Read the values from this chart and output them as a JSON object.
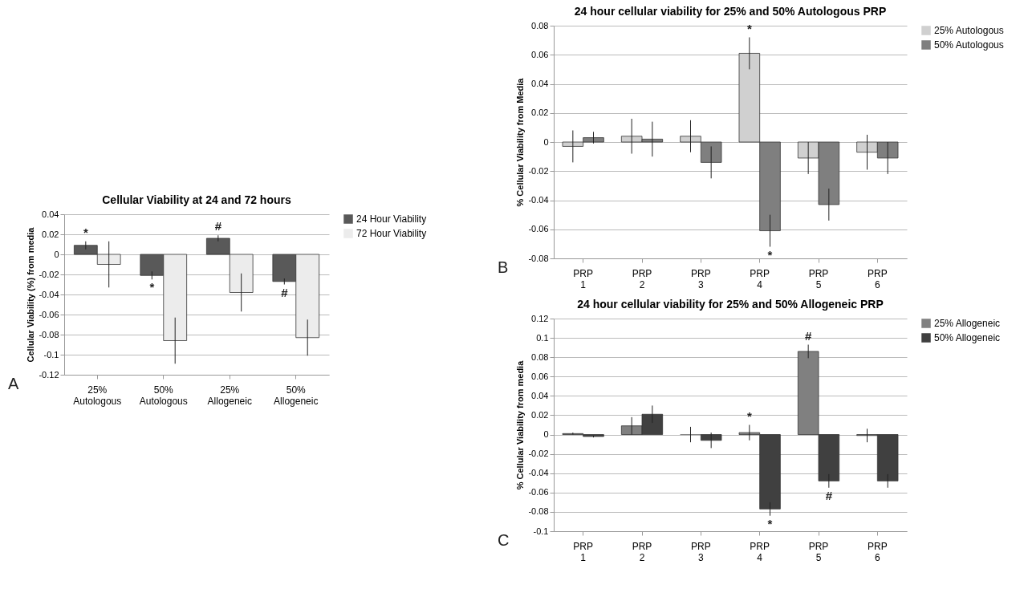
{
  "chart_data": [
    {
      "type": "bar",
      "title": "Cellular Viability at 24 and 72 hours",
      "ylabel": "Cellular Viability (%) from media",
      "categories": [
        "25% Autologous",
        "50% Autologous",
        "25% Allogeneic",
        "50% Allogeneic"
      ],
      "series": [
        {
          "name": "24 Hour Viability",
          "color": "#595959",
          "values": [
            0.009,
            -0.021,
            0.016,
            -0.027
          ],
          "errors": [
            0.004,
            0.004,
            0.003,
            0.003
          ],
          "value_labels": [
            "*",
            "*",
            "#",
            "#"
          ]
        },
        {
          "name": "72 Hour Viability",
          "color": "#ececec",
          "values": [
            -0.01,
            -0.086,
            -0.038,
            -0.083
          ],
          "errors": [
            0.023,
            0.023,
            0.019,
            0.018
          ]
        }
      ],
      "ylim": [
        -0.12,
        0.04
      ],
      "yticks": [
        -0.12,
        -0.1,
        -0.08,
        -0.06,
        -0.04,
        -0.02,
        0,
        0.02,
        0.04
      ],
      "grid": "y",
      "legend": "right",
      "annotations": [
        "A"
      ]
    },
    {
      "type": "bar",
      "title": "24 hour cellular viability for 25% and 50% Autologous PRP",
      "ylabel": "% Cellular Viability from Media",
      "categories": [
        "PRP 1",
        "PRP 2",
        "PRP 3",
        "PRP 4",
        "PRP 5",
        "PRP 6"
      ],
      "series": [
        {
          "name": "25% Autologous",
          "color": "#d0d0d0",
          "values": [
            -0.003,
            0.004,
            0.004,
            0.061,
            -0.011,
            -0.007
          ],
          "errors": [
            0.011,
            0.012,
            0.011,
            0.011,
            0.011,
            0.012
          ],
          "value_labels": [
            null,
            null,
            null,
            "*",
            null,
            null
          ]
        },
        {
          "name": "50% Autologous",
          "color": "#7f7f7f",
          "values": [
            0.003,
            0.002,
            -0.014,
            -0.061,
            -0.043,
            -0.011
          ],
          "errors": [
            0.004,
            0.012,
            0.011,
            0.011,
            0.011,
            0.011
          ],
          "value_labels": [
            null,
            null,
            null,
            "*",
            null,
            null
          ]
        }
      ],
      "ylim": [
        -0.08,
        0.08
      ],
      "yticks": [
        -0.08,
        -0.06,
        -0.04,
        -0.02,
        0,
        0.02,
        0.04,
        0.06,
        0.08
      ],
      "grid": "y",
      "legend": "right",
      "annotations": [
        "B"
      ]
    },
    {
      "type": "bar",
      "title": "24 hour cellular viability for 25% and 50% Allogeneic PRP",
      "ylabel": "% Cellular Viability from media",
      "categories": [
        "PRP 1",
        "PRP 2",
        "PRP 3",
        "PRP 4",
        "PRP 5",
        "PRP 6"
      ],
      "series": [
        {
          "name": "25% Allogeneic",
          "color": "#808080",
          "values": [
            0.001,
            0.009,
            0,
            0.002,
            0.086,
            -0.001
          ],
          "errors": [
            0.001,
            0.009,
            0.008,
            0.008,
            0.007,
            0.007
          ],
          "value_labels": [
            null,
            null,
            null,
            "*",
            "#",
            null
          ]
        },
        {
          "name": "50% Allogeneic",
          "color": "#404040",
          "values": [
            -0.002,
            0.021,
            -0.006,
            -0.077,
            -0.048,
            -0.048
          ],
          "errors": [
            0.001,
            0.009,
            0.008,
            0.007,
            0.007,
            0.007
          ],
          "value_labels": [
            null,
            null,
            null,
            "*",
            "#",
            null
          ]
        }
      ],
      "ylim": [
        -0.1,
        0.12
      ],
      "yticks": [
        -0.1,
        -0.08,
        -0.06,
        -0.04,
        -0.02,
        0,
        0.02,
        0.04,
        0.06,
        0.08,
        0.1,
        0.12
      ],
      "grid": "y",
      "legend": "right",
      "annotations": [
        "C"
      ]
    }
  ]
}
